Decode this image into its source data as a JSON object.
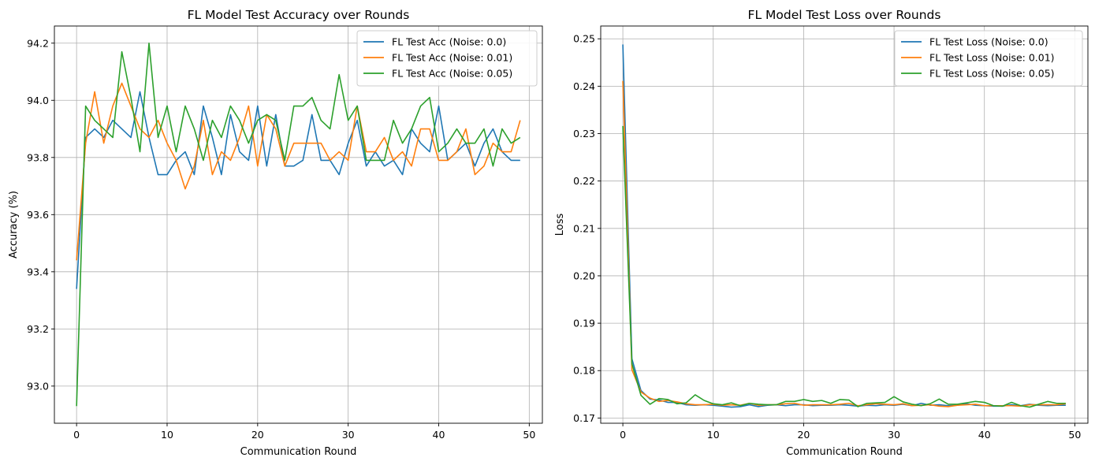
{
  "chart_data": [
    {
      "type": "line",
      "title": "FL Model Test Accuracy over Rounds",
      "xlabel": "Communication Round",
      "ylabel": "Accuracy (%)",
      "xlim": [
        -2.45,
        51.45
      ],
      "ylim": [
        92.87,
        94.26
      ],
      "xticks": [
        0,
        10,
        20,
        30,
        40,
        50
      ],
      "yticks": [
        93.0,
        93.2,
        93.4,
        93.6,
        93.8,
        94.0,
        94.2
      ],
      "ytick_labels": [
        "93.0",
        "93.2",
        "93.4",
        "93.6",
        "93.8",
        "94.0",
        "94.2"
      ],
      "grid": true,
      "legend_position": "top-right",
      "x": [
        0,
        1,
        2,
        3,
        4,
        5,
        6,
        7,
        8,
        9,
        10,
        11,
        12,
        13,
        14,
        15,
        16,
        17,
        18,
        19,
        20,
        21,
        22,
        23,
        24,
        25,
        26,
        27,
        28,
        29,
        30,
        31,
        32,
        33,
        34,
        35,
        36,
        37,
        38,
        39,
        40,
        41,
        42,
        43,
        44,
        45,
        46,
        47,
        48,
        49
      ],
      "series": [
        {
          "name": "FL Test Acc (Noise: 0.0)",
          "color": "#1f77b4",
          "values": [
            93.34,
            93.87,
            93.9,
            93.87,
            93.93,
            93.9,
            93.87,
            94.03,
            93.87,
            93.74,
            93.74,
            93.79,
            93.82,
            93.74,
            93.98,
            93.87,
            93.74,
            93.95,
            93.82,
            93.79,
            93.98,
            93.77,
            93.95,
            93.77,
            93.77,
            93.79,
            93.95,
            93.79,
            93.79,
            93.74,
            93.85,
            93.93,
            93.77,
            93.82,
            93.77,
            93.79,
            93.74,
            93.9,
            93.85,
            93.82,
            93.98,
            93.79,
            93.82,
            93.85,
            93.77,
            93.85,
            93.9,
            93.82,
            93.79,
            93.79
          ]
        },
        {
          "name": "FL Test Acc (Noise: 0.01)",
          "color": "#ff7f0e",
          "values": [
            93.44,
            93.85,
            94.03,
            93.85,
            93.98,
            94.06,
            93.98,
            93.9,
            93.87,
            93.93,
            93.85,
            93.79,
            93.69,
            93.77,
            93.93,
            93.74,
            93.82,
            93.79,
            93.87,
            93.98,
            93.77,
            93.95,
            93.9,
            93.77,
            93.85,
            93.85,
            93.85,
            93.85,
            93.79,
            93.82,
            93.79,
            93.98,
            93.82,
            93.82,
            93.87,
            93.79,
            93.82,
            93.77,
            93.9,
            93.9,
            93.79,
            93.79,
            93.82,
            93.9,
            93.74,
            93.77,
            93.85,
            93.82,
            93.82,
            93.93
          ]
        },
        {
          "name": "FL Test Acc (Noise: 0.05)",
          "color": "#2ca02c",
          "values": [
            92.93,
            93.98,
            93.93,
            93.9,
            93.87,
            94.17,
            94.01,
            93.82,
            94.2,
            93.87,
            93.98,
            93.82,
            93.98,
            93.9,
            93.79,
            93.93,
            93.87,
            93.98,
            93.93,
            93.85,
            93.93,
            93.95,
            93.93,
            93.79,
            93.98,
            93.98,
            94.01,
            93.93,
            93.9,
            94.09,
            93.93,
            93.98,
            93.79,
            93.79,
            93.79,
            93.93,
            93.85,
            93.9,
            93.98,
            94.01,
            93.82,
            93.85,
            93.9,
            93.85,
            93.85,
            93.9,
            93.77,
            93.9,
            93.85,
            93.87
          ]
        }
      ]
    },
    {
      "type": "line",
      "title": "FL Model Test Loss over Rounds",
      "xlabel": "Communication Round",
      "ylabel": "Loss",
      "xlim": [
        -2.45,
        51.45
      ],
      "ylim": [
        0.1689,
        0.2527
      ],
      "xticks": [
        0,
        10,
        20,
        30,
        40,
        50
      ],
      "yticks": [
        0.17,
        0.18,
        0.19,
        0.2,
        0.21,
        0.22,
        0.23,
        0.24,
        0.25
      ],
      "ytick_labels": [
        "0.17",
        "0.18",
        "0.19",
        "0.20",
        "0.21",
        "0.22",
        "0.23",
        "0.24",
        "0.25"
      ],
      "grid": true,
      "legend_position": "top-right",
      "x": [
        0,
        1,
        2,
        3,
        4,
        5,
        6,
        7,
        8,
        9,
        10,
        11,
        12,
        13,
        14,
        15,
        16,
        17,
        18,
        19,
        20,
        21,
        22,
        23,
        24,
        25,
        26,
        27,
        28,
        29,
        30,
        31,
        32,
        33,
        34,
        35,
        36,
        37,
        38,
        39,
        40,
        41,
        42,
        43,
        44,
        45,
        46,
        47,
        48,
        49
      ],
      "series": [
        {
          "name": "FL Test Loss (Noise: 0.0)",
          "color": "#1f77b4",
          "values": [
            0.2488,
            0.1825,
            0.1758,
            0.174,
            0.1738,
            0.1733,
            0.1733,
            0.1728,
            0.1727,
            0.1728,
            0.1727,
            0.1725,
            0.1723,
            0.1724,
            0.1728,
            0.1724,
            0.1727,
            0.1728,
            0.1726,
            0.1728,
            0.1728,
            0.1726,
            0.1727,
            0.1727,
            0.1728,
            0.1727,
            0.1725,
            0.1727,
            0.1726,
            0.1728,
            0.1727,
            0.1729,
            0.1726,
            0.1731,
            0.1727,
            0.1728,
            0.1726,
            0.1727,
            0.173,
            0.1727,
            0.1726,
            0.1725,
            0.1725,
            0.1728,
            0.1726,
            0.1729,
            0.1727,
            0.1726,
            0.1727,
            0.1727
          ]
        },
        {
          "name": "FL Test Loss (Noise: 0.01)",
          "color": "#ff7f0e",
          "values": [
            0.2411,
            0.1802,
            0.1755,
            0.1742,
            0.1735,
            0.1737,
            0.1734,
            0.173,
            0.1728,
            0.1728,
            0.1729,
            0.1727,
            0.1728,
            0.1727,
            0.1731,
            0.1727,
            0.1728,
            0.1728,
            0.173,
            0.1731,
            0.1727,
            0.1728,
            0.1728,
            0.1728,
            0.1729,
            0.1731,
            0.1726,
            0.1728,
            0.173,
            0.1729,
            0.1728,
            0.173,
            0.1726,
            0.1727,
            0.1728,
            0.1725,
            0.1724,
            0.1727,
            0.1728,
            0.1729,
            0.1726,
            0.1726,
            0.1726,
            0.1726,
            0.1725,
            0.1728,
            0.1728,
            0.1728,
            0.1728,
            0.173
          ]
        },
        {
          "name": "FL Test Loss (Noise: 0.05)",
          "color": "#2ca02c",
          "values": [
            0.2316,
            0.1815,
            0.1748,
            0.1729,
            0.1741,
            0.1739,
            0.173,
            0.1732,
            0.1749,
            0.1737,
            0.173,
            0.1728,
            0.1732,
            0.1726,
            0.1731,
            0.1729,
            0.1728,
            0.1728,
            0.1735,
            0.1735,
            0.1739,
            0.1735,
            0.1737,
            0.1731,
            0.1739,
            0.1738,
            0.1724,
            0.1731,
            0.1732,
            0.1733,
            0.1745,
            0.1734,
            0.1729,
            0.1726,
            0.173,
            0.174,
            0.1729,
            0.1729,
            0.1732,
            0.1735,
            0.1733,
            0.1726,
            0.1725,
            0.1733,
            0.1726,
            0.1723,
            0.1729,
            0.1735,
            0.1731,
            0.1731
          ]
        }
      ]
    }
  ]
}
